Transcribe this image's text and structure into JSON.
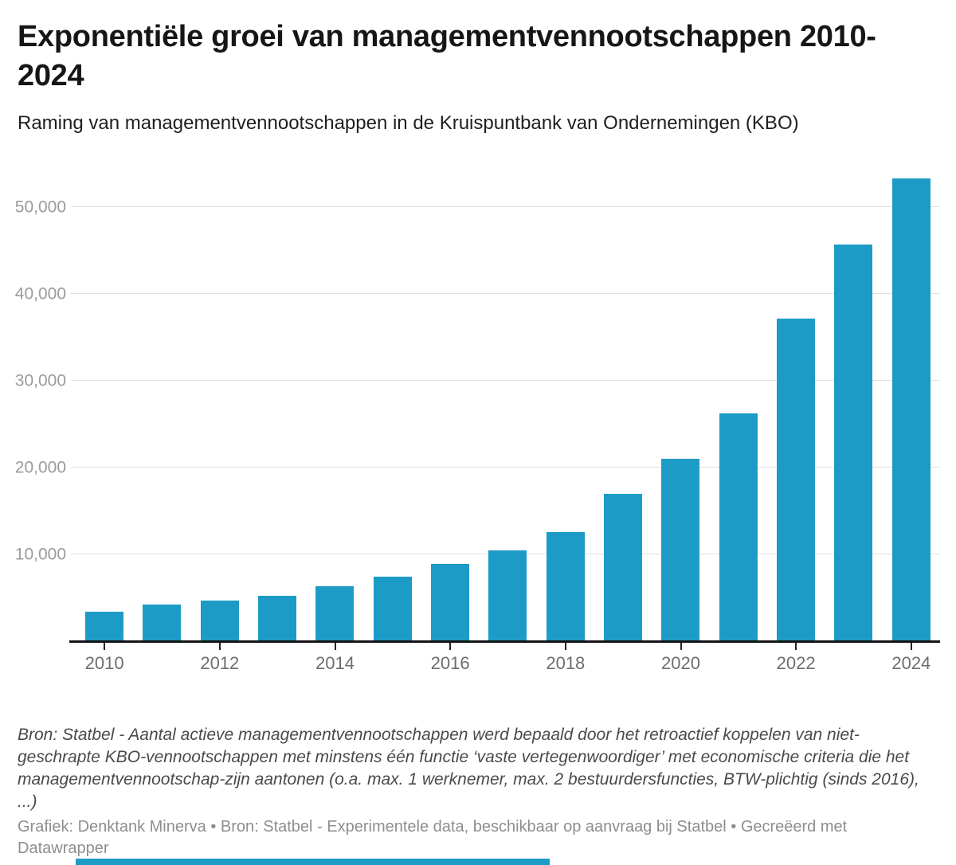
{
  "header": {
    "title": "Exponentiële groei van managementvennootschappen 2010-2024",
    "subtitle": "Raming van managementvennootschappen in de Kruispuntbank van Ondernemingen (KBO)"
  },
  "chart_data": {
    "type": "bar",
    "title": "Exponentiële groei van managementvennootschappen 2010-2024",
    "subtitle": "Raming van managementvennootschappen in de Kruispuntbank van Ondernemingen (KBO)",
    "categories": [
      "2010",
      "2011",
      "2012",
      "2013",
      "2014",
      "2015",
      "2016",
      "2017",
      "2018",
      "2019",
      "2020",
      "2021",
      "2022",
      "2023",
      "2024"
    ],
    "values": [
      3400,
      4200,
      4650,
      5200,
      6300,
      7400,
      8900,
      10400,
      12500,
      16900,
      21000,
      26200,
      37100,
      45700,
      53300
    ],
    "xlabel": "",
    "ylabel": "",
    "ylim": [
      0,
      54600
    ],
    "grid": true,
    "legend_position": "none",
    "bar_color": "#1d9bc7",
    "y_ticks": [
      {
        "value": 10000,
        "label": "10,000"
      },
      {
        "value": 20000,
        "label": "20,000"
      },
      {
        "value": 30000,
        "label": "30,000"
      },
      {
        "value": 40000,
        "label": "40,000"
      },
      {
        "value": 50000,
        "label": "50,000"
      }
    ],
    "x_ticks": [
      {
        "index": 0,
        "label": "2010"
      },
      {
        "index": 2,
        "label": "2012"
      },
      {
        "index": 4,
        "label": "2014"
      },
      {
        "index": 6,
        "label": "2016"
      },
      {
        "index": 8,
        "label": "2018"
      },
      {
        "index": 10,
        "label": "2020"
      },
      {
        "index": 12,
        "label": "2022"
      },
      {
        "index": 14,
        "label": "2024"
      }
    ]
  },
  "footer": {
    "note": "Bron: Statbel - Aantal actieve managementvennootschappen werd bepaald door het retroactief koppelen van niet-geschrapte KBO-vennootschappen met minstens één functie ‘vaste vertegenwoordiger’ met economische criteria die het managementvennootschap-zijn aantonen (o.a. max. 1 werknemer, max. 2 bestuurdersfuncties, BTW-plichtig (sinds 2016), ...)",
    "credit": "Grafiek: Denktank Minerva • Bron: Statbel - Experimentele data, beschikbaar op aanvraag bij Statbel • Gecreëerd met Datawrapper"
  }
}
